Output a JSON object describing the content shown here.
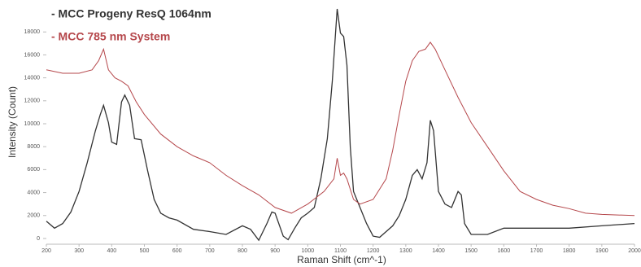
{
  "chart_data": {
    "type": "line",
    "ylabel": "Intensity (Count)",
    "xlabel": "Raman Shift (cm^-1)",
    "xlim": [
      200,
      2000
    ],
    "xticks": [
      200,
      300,
      400,
      500,
      600,
      700,
      800,
      900,
      1000,
      1100,
      1200,
      1300,
      1400,
      1500,
      1600,
      1700,
      1800,
      1900,
      2000
    ],
    "ylim": [
      -500,
      20500
    ],
    "yticks": [
      0,
      2000,
      4000,
      6000,
      8000,
      10000,
      12000,
      14000,
      16000,
      18000
    ],
    "legend": "upper left",
    "series": [
      {
        "name": "- MCC Progeny ResQ 1064nm",
        "color": "#333333",
        "x": [
          200,
          225,
          250,
          275,
          300,
          325,
          350,
          365,
          375,
          390,
          400,
          415,
          430,
          440,
          455,
          470,
          490,
          510,
          530,
          550,
          575,
          600,
          650,
          700,
          750,
          800,
          825,
          850,
          875,
          890,
          900,
          925,
          940,
          960,
          980,
          1000,
          1020,
          1040,
          1060,
          1075,
          1090,
          1100,
          1110,
          1120,
          1130,
          1140,
          1160,
          1180,
          1200,
          1220,
          1240,
          1260,
          1280,
          1300,
          1320,
          1335,
          1350,
          1365,
          1375,
          1385,
          1400,
          1420,
          1440,
          1460,
          1470,
          1480,
          1500,
          1550,
          1600,
          1700,
          1800,
          1900,
          2000
        ],
        "values": [
          1500,
          900,
          1300,
          2300,
          4100,
          6600,
          9400,
          10800,
          11600,
          10100,
          8400,
          8200,
          11900,
          12500,
          11600,
          8700,
          8600,
          5900,
          3400,
          2200,
          1800,
          1600,
          800,
          600,
          350,
          1100,
          800,
          -150,
          1300,
          2300,
          2200,
          200,
          -100,
          900,
          1800,
          2200,
          2700,
          5200,
          8700,
          13700,
          20000,
          17900,
          17600,
          15100,
          8000,
          4100,
          2700,
          1300,
          200,
          100,
          600,
          1100,
          2000,
          3400,
          5500,
          6000,
          5200,
          6600,
          10300,
          9400,
          4100,
          3000,
          2700,
          4100,
          3800,
          1300,
          350,
          350,
          900,
          900,
          900,
          1100,
          1300
        ]
      },
      {
        "name": "- MCC 785 nm System",
        "color": "#b5474b",
        "x": [
          200,
          250,
          300,
          340,
          360,
          375,
          390,
          410,
          430,
          450,
          475,
          500,
          550,
          600,
          650,
          700,
          750,
          800,
          850,
          900,
          950,
          1000,
          1050,
          1080,
          1090,
          1100,
          1110,
          1120,
          1140,
          1160,
          1200,
          1240,
          1260,
          1280,
          1300,
          1320,
          1340,
          1360,
          1375,
          1390,
          1420,
          1460,
          1500,
          1550,
          1600,
          1650,
          1700,
          1750,
          1800,
          1850,
          1900,
          2000
        ],
        "values": [
          14700,
          14400,
          14400,
          14700,
          15500,
          16500,
          14700,
          14000,
          13700,
          13300,
          11900,
          10800,
          9100,
          8000,
          7200,
          6600,
          5500,
          4600,
          3800,
          2700,
          2200,
          3000,
          4100,
          5200,
          7000,
          5500,
          5700,
          5200,
          3400,
          3000,
          3400,
          5200,
          7700,
          10800,
          13700,
          15500,
          16300,
          16500,
          17100,
          16500,
          14700,
          12300,
          10100,
          8000,
          5900,
          4100,
          3400,
          2900,
          2600,
          2200,
          2100,
          2000
        ]
      }
    ]
  }
}
